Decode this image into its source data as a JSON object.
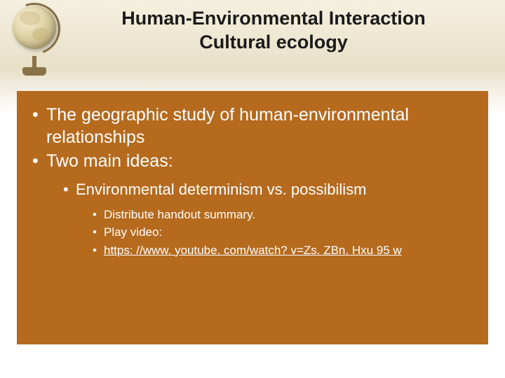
{
  "title": {
    "line1": "Human-Environmental Interaction",
    "line2": "Cultural ecology"
  },
  "bullets": {
    "level1": [
      "The geographic study of human-environmental relationships",
      "Two main ideas:"
    ],
    "level2": "Environmental determinism vs. possibilism",
    "level3": [
      "Distribute handout summary.",
      "Play video:",
      "https: //www. youtube. com/watch? v=Zs. ZBn. Hxu 95 w"
    ]
  },
  "colors": {
    "content_box_bg": "#b56a1e",
    "content_text": "#ffffff",
    "title_text": "#1a1a1a",
    "header_gradient_top": "#f5f0e0",
    "header_gradient_mid": "#e8e0c8",
    "page_bg": "#ffffff"
  }
}
